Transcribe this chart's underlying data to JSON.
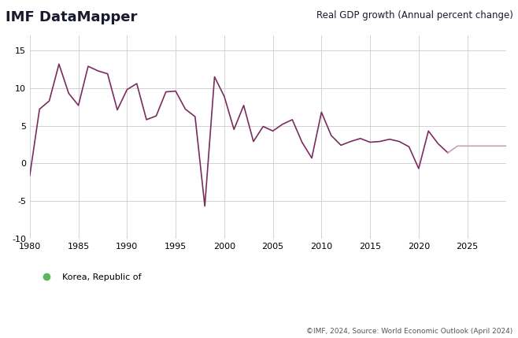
{
  "title_left": "IMF DataMapper",
  "title_right": "Real GDP growth (Annual percent change)",
  "footer": "©IMF, 2024, Source: World Economic Outlook (April 2024)",
  "legend_label": "Korea, Republic of",
  "legend_color": "#5cb85c",
  "line_color": "#7b2d5e",
  "forecast_color": "#c8a0b8",
  "xlim": [
    1980,
    2029
  ],
  "ylim": [
    -10,
    17
  ],
  "yticks": [
    -10,
    -5,
    0,
    5,
    10,
    15
  ],
  "xticks": [
    1980,
    1985,
    1990,
    1995,
    2000,
    2005,
    2010,
    2015,
    2020,
    2025
  ],
  "forecast_start": 2024,
  "years": [
    1980,
    1981,
    1982,
    1983,
    1984,
    1985,
    1986,
    1987,
    1988,
    1989,
    1990,
    1991,
    1992,
    1993,
    1994,
    1995,
    1996,
    1997,
    1998,
    1999,
    2000,
    2001,
    2002,
    2003,
    2004,
    2005,
    2006,
    2007,
    2008,
    2009,
    2010,
    2011,
    2012,
    2013,
    2014,
    2015,
    2016,
    2017,
    2018,
    2019,
    2020,
    2021,
    2022,
    2023,
    2024,
    2025,
    2026,
    2027,
    2028,
    2029
  ],
  "values": [
    -1.6,
    7.2,
    8.3,
    13.2,
    9.3,
    7.7,
    12.9,
    12.3,
    11.9,
    7.1,
    9.8,
    10.6,
    5.8,
    6.3,
    9.5,
    9.6,
    7.2,
    6.2,
    -5.7,
    11.5,
    8.9,
    4.5,
    7.7,
    2.9,
    4.9,
    4.3,
    5.2,
    5.8,
    2.8,
    0.7,
    6.8,
    3.7,
    2.4,
    2.9,
    3.3,
    2.8,
    2.9,
    3.2,
    2.9,
    2.2,
    -0.7,
    4.3,
    2.6,
    1.4,
    2.3,
    2.3,
    2.3,
    2.3,
    2.3,
    2.3
  ]
}
